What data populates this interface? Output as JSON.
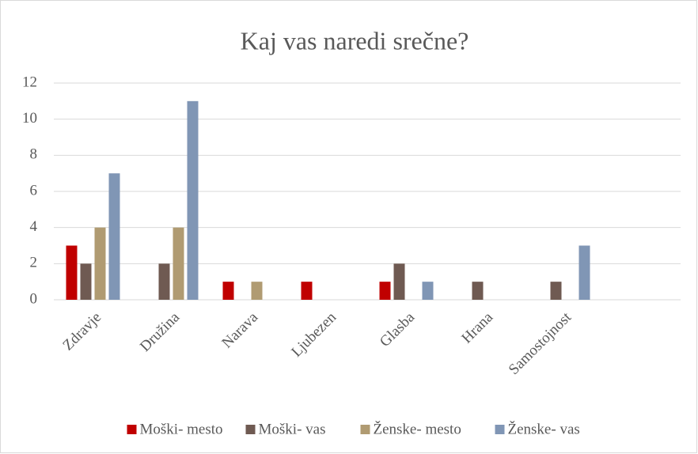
{
  "chart_data": {
    "type": "bar",
    "title": "Kaj vas naredi srečne?",
    "categories": [
      "Zdravje",
      "Družina",
      "Narava",
      "Ljubezen",
      "Glasba",
      "Hrana",
      "Samostojnost",
      null
    ],
    "series": [
      {
        "name": "Moški- mesto",
        "color": "#c00000",
        "values": [
          3,
          0,
          1,
          1,
          1,
          0,
          0,
          null
        ]
      },
      {
        "name": "Moški- vas",
        "color": "#6f5a52",
        "values": [
          2,
          2,
          0,
          0,
          2,
          1,
          1,
          null
        ]
      },
      {
        "name": "Ženske- mesto",
        "color": "#b09b72",
        "values": [
          4,
          4,
          1,
          0,
          0,
          0,
          0,
          null
        ]
      },
      {
        "name": "Ženske- vas",
        "color": "#8096b5",
        "values": [
          7,
          11,
          0,
          0,
          1,
          0,
          3,
          null
        ]
      }
    ],
    "ylim": [
      0,
      12
    ],
    "yticks": [
      0,
      2,
      4,
      6,
      8,
      10,
      12
    ],
    "grid": true,
    "legend": "bottom"
  }
}
